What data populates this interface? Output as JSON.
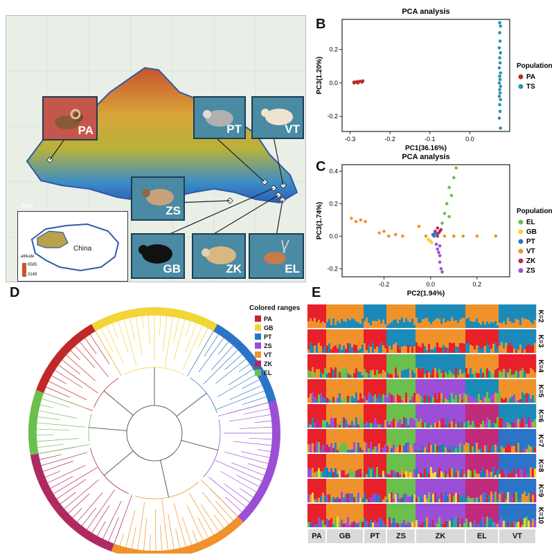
{
  "panel_letters": {
    "a": "A",
    "b": "B",
    "c": "C",
    "d": "D",
    "e": "E"
  },
  "map": {
    "animals": [
      "PA",
      "PT",
      "VT",
      "ZS",
      "GB",
      "ZK",
      "EL"
    ],
    "inset_region": "Asia",
    "inset_country": "China",
    "legend_title": "altitude",
    "legend_max": "6585",
    "legend_min": "3148"
  },
  "chart_data": [
    {
      "id": "B",
      "type": "scatter",
      "title": "PCA analysis",
      "xlabel": "PC1(36.16%)",
      "ylabel": "PC3(1.20%)",
      "xlim": [
        -0.32,
        0.1
      ],
      "ylim": [
        -0.29,
        0.38
      ],
      "xticks": [
        -0.3,
        -0.2,
        -0.1,
        0.0
      ],
      "yticks": [
        -0.2,
        0.0,
        0.2
      ],
      "legend_title": "Population",
      "series": [
        {
          "name": "PA",
          "color": "#c0282a",
          "points": [
            [
              -0.29,
              0.0
            ],
            [
              -0.285,
              0.005
            ],
            [
              -0.28,
              0.0
            ],
            [
              -0.275,
              0.01
            ],
            [
              -0.27,
              0.005
            ],
            [
              -0.29,
              0.005
            ],
            [
              -0.268,
              0.012
            ],
            [
              -0.282,
              0.008
            ]
          ]
        },
        {
          "name": "TS",
          "color": "#2a8fb0",
          "points": [
            [
              0.075,
              0.36
            ],
            [
              0.077,
              0.34
            ],
            [
              0.075,
              0.3
            ],
            [
              0.076,
              0.25
            ],
            [
              0.074,
              0.21
            ],
            [
              0.077,
              0.18
            ],
            [
              0.075,
              0.15
            ],
            [
              0.076,
              0.12
            ],
            [
              0.074,
              0.09
            ],
            [
              0.077,
              0.06
            ],
            [
              0.075,
              0.04
            ],
            [
              0.076,
              0.02
            ],
            [
              0.074,
              0.0
            ],
            [
              0.077,
              -0.02
            ],
            [
              0.075,
              -0.04
            ],
            [
              0.076,
              -0.06
            ],
            [
              0.074,
              -0.08
            ],
            [
              0.077,
              -0.1
            ],
            [
              0.075,
              -0.13
            ],
            [
              0.076,
              -0.17
            ],
            [
              0.074,
              -0.21
            ],
            [
              0.077,
              -0.27
            ]
          ]
        }
      ]
    },
    {
      "id": "C",
      "type": "scatter",
      "title": "PCA analysis",
      "xlabel": "PC2(1.94%)",
      "ylabel": "PC3(1.74%)",
      "xlim": [
        -0.38,
        0.34
      ],
      "ylim": [
        -0.25,
        0.44
      ],
      "xticks": [
        -0.2,
        0.0,
        0.2
      ],
      "yticks": [
        -0.2,
        0.0,
        0.2,
        0.4
      ],
      "legend_title": "Population",
      "series": [
        {
          "name": "EL",
          "color": "#6bbf4d",
          "points": [
            [
              0.11,
              0.42
            ],
            [
              0.1,
              0.36
            ],
            [
              0.08,
              0.3
            ],
            [
              0.09,
              0.25
            ],
            [
              0.07,
              0.2
            ],
            [
              0.06,
              0.14
            ],
            [
              0.08,
              0.12
            ],
            [
              0.05,
              0.08
            ]
          ]
        },
        {
          "name": "GB",
          "color": "#f2d536",
          "points": [
            [
              0.0,
              -0.03
            ],
            [
              -0.01,
              -0.02
            ],
            [
              0.005,
              -0.04
            ],
            [
              -0.005,
              -0.025
            ]
          ]
        },
        {
          "name": "PT",
          "color": "#2b74c7",
          "points": [
            [
              0.01,
              0.01
            ],
            [
              0.02,
              0.02
            ],
            [
              0.015,
              0.0
            ],
            [
              0.025,
              0.015
            ]
          ]
        },
        {
          "name": "VT",
          "color": "#f0922b",
          "points": [
            [
              -0.34,
              0.11
            ],
            [
              -0.32,
              0.09
            ],
            [
              -0.3,
              0.1
            ],
            [
              -0.28,
              0.09
            ],
            [
              -0.22,
              0.02
            ],
            [
              -0.2,
              0.03
            ],
            [
              -0.18,
              0.0
            ],
            [
              -0.15,
              0.01
            ],
            [
              -0.12,
              0.0
            ],
            [
              -0.05,
              0.06
            ],
            [
              -0.02,
              0.0
            ],
            [
              0.06,
              0.0
            ],
            [
              0.1,
              0.0
            ],
            [
              0.14,
              0.0
            ],
            [
              0.2,
              0.0
            ],
            [
              0.28,
              0.0
            ]
          ]
        },
        {
          "name": "ZK",
          "color": "#b02a62",
          "points": [
            [
              0.02,
              0.03
            ],
            [
              0.03,
              0.05
            ],
            [
              0.035,
              0.02
            ],
            [
              0.04,
              0.03
            ],
            [
              0.03,
              0.0
            ],
            [
              0.045,
              0.04
            ]
          ]
        },
        {
          "name": "ZS",
          "color": "#9b4fd6",
          "points": [
            [
              0.025,
              -0.05
            ],
            [
              0.03,
              -0.08
            ],
            [
              0.035,
              -0.1
            ],
            [
              0.04,
              -0.12
            ],
            [
              0.04,
              -0.16
            ],
            [
              0.045,
              -0.2
            ],
            [
              0.05,
              -0.22
            ],
            [
              0.04,
              -0.06
            ]
          ]
        }
      ]
    }
  ],
  "tree": {
    "legend_title": "Colored ranges",
    "ranges": [
      {
        "name": "PA",
        "color": "#c0282a"
      },
      {
        "name": "GB",
        "color": "#f2d536"
      },
      {
        "name": "PT",
        "color": "#2b74c7"
      },
      {
        "name": "ZS",
        "color": "#9b4fd6"
      },
      {
        "name": "VT",
        "color": "#f0922b"
      },
      {
        "name": "ZK",
        "color": "#b02a62"
      },
      {
        "name": "EL",
        "color": "#6bbf4d"
      }
    ]
  },
  "admixture": {
    "k_labels": [
      "K=2",
      "K=3",
      "K=4",
      "K=5",
      "K=6",
      "K=7",
      "K=8",
      "K=9",
      "K=10"
    ],
    "populations": [
      "PA",
      "GB",
      "PT",
      "ZS",
      "ZK",
      "EL",
      "VT"
    ]
  }
}
